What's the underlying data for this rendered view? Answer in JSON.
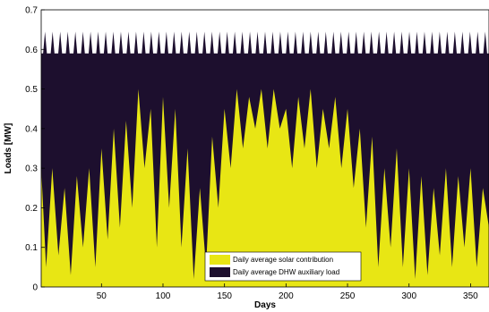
{
  "chart_data": {
    "type": "area",
    "title": "",
    "xlabel": "Days",
    "ylabel": "Loads [MW]",
    "xlim": [
      1,
      365
    ],
    "ylim": [
      0,
      0.7
    ],
    "x_ticks": [
      50,
      100,
      150,
      200,
      250,
      300,
      350
    ],
    "y_ticks": [
      0,
      0.1,
      0.2,
      0.3,
      0.4,
      0.5,
      0.6,
      0.7
    ],
    "grid": false,
    "legend_placement": "bottom-right",
    "stacked": true,
    "series": [
      {
        "name": "Daily average solar contribution",
        "color": "#e8e614",
        "anchors": [
          [
            1,
            0.3
          ],
          [
            5,
            0.05
          ],
          [
            10,
            0.3
          ],
          [
            15,
            0.08
          ],
          [
            20,
            0.25
          ],
          [
            25,
            0.03
          ],
          [
            30,
            0.28
          ],
          [
            35,
            0.1
          ],
          [
            40,
            0.3
          ],
          [
            45,
            0.05
          ],
          [
            50,
            0.35
          ],
          [
            55,
            0.12
          ],
          [
            60,
            0.4
          ],
          [
            65,
            0.15
          ],
          [
            70,
            0.42
          ],
          [
            75,
            0.2
          ],
          [
            80,
            0.5
          ],
          [
            85,
            0.3
          ],
          [
            90,
            0.45
          ],
          [
            95,
            0.1
          ],
          [
            100,
            0.48
          ],
          [
            105,
            0.2
          ],
          [
            110,
            0.45
          ],
          [
            115,
            0.1
          ],
          [
            120,
            0.35
          ],
          [
            125,
            0.02
          ],
          [
            130,
            0.25
          ],
          [
            135,
            0.05
          ],
          [
            140,
            0.38
          ],
          [
            145,
            0.2
          ],
          [
            150,
            0.45
          ],
          [
            155,
            0.3
          ],
          [
            160,
            0.5
          ],
          [
            165,
            0.35
          ],
          [
            170,
            0.48
          ],
          [
            175,
            0.4
          ],
          [
            180,
            0.5
          ],
          [
            185,
            0.35
          ],
          [
            190,
            0.5
          ],
          [
            195,
            0.4
          ],
          [
            200,
            0.45
          ],
          [
            205,
            0.3
          ],
          [
            210,
            0.48
          ],
          [
            215,
            0.35
          ],
          [
            220,
            0.5
          ],
          [
            225,
            0.3
          ],
          [
            230,
            0.45
          ],
          [
            235,
            0.35
          ],
          [
            240,
            0.48
          ],
          [
            245,
            0.3
          ],
          [
            250,
            0.45
          ],
          [
            255,
            0.25
          ],
          [
            260,
            0.4
          ],
          [
            265,
            0.15
          ],
          [
            270,
            0.38
          ],
          [
            275,
            0.05
          ],
          [
            280,
            0.3
          ],
          [
            285,
            0.1
          ],
          [
            290,
            0.35
          ],
          [
            295,
            0.05
          ],
          [
            300,
            0.3
          ],
          [
            305,
            0.02
          ],
          [
            310,
            0.28
          ],
          [
            315,
            0.03
          ],
          [
            320,
            0.25
          ],
          [
            325,
            0.08
          ],
          [
            330,
            0.3
          ],
          [
            335,
            0.05
          ],
          [
            340,
            0.28
          ],
          [
            345,
            0.1
          ],
          [
            350,
            0.3
          ],
          [
            355,
            0.05
          ],
          [
            360,
            0.25
          ],
          [
            365,
            0.15
          ]
        ]
      },
      {
        "name": "Daily average DHW auxiliary load",
        "color": "#1d0f2e",
        "total_base": 0.59,
        "total_peak": 0.645,
        "peak_count": 59
      }
    ]
  }
}
